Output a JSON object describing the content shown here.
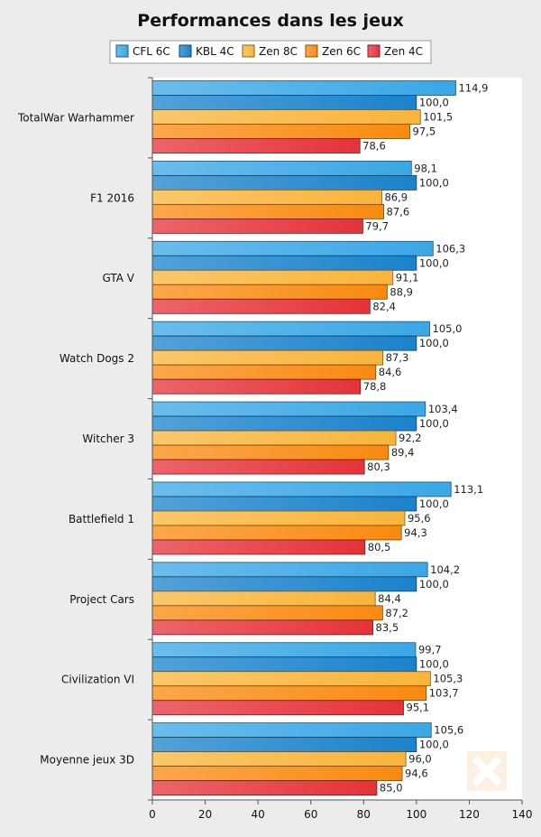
{
  "chart_data": {
    "type": "bar",
    "orientation": "horizontal",
    "title": "Performances dans les jeux",
    "categories": [
      "TotalWar Warhammer",
      "F1 2016",
      "GTA V",
      "Watch Dogs 2",
      "Witcher 3",
      "Battlefield 1",
      "Project Cars",
      "Civilization VI",
      "Moyenne jeux 3D"
    ],
    "series": [
      {
        "name": "CFL 6C",
        "color": "#3aa7e6",
        "values": [
          114.9,
          98.1,
          106.3,
          105.0,
          103.4,
          113.1,
          104.2,
          99.7,
          105.6
        ],
        "labels": [
          "114,9",
          "98,1",
          "106,3",
          "105,0",
          "103,4",
          "113,1",
          "104,2",
          "99,7",
          "105,6"
        ]
      },
      {
        "name": "KBL 4C",
        "color": "#1a82cc",
        "values": [
          100.0,
          100.0,
          100.0,
          100.0,
          100.0,
          100.0,
          100.0,
          100.0,
          100.0
        ],
        "labels": [
          "100,0",
          "100,0",
          "100,0",
          "100,0",
          "100,0",
          "100,0",
          "100,0",
          "100,0",
          "100,0"
        ]
      },
      {
        "name": "Zen 8C",
        "color": "#f9b43a",
        "values": [
          101.5,
          86.9,
          91.1,
          87.3,
          92.2,
          95.6,
          84.4,
          105.3,
          96.0
        ],
        "labels": [
          "101,5",
          "86,9",
          "91,1",
          "87,3",
          "92,2",
          "95,6",
          "84,4",
          "105,3",
          "96,0"
        ]
      },
      {
        "name": "Zen 6C",
        "color": "#f98a10",
        "values": [
          97.5,
          87.6,
          88.9,
          84.6,
          89.4,
          94.3,
          87.2,
          103.7,
          94.6
        ],
        "labels": [
          "97,5",
          "87,6",
          "88,9",
          "84,6",
          "89,4",
          "94,3",
          "87,2",
          "103,7",
          "94,6"
        ]
      },
      {
        "name": "Zen 4C",
        "color": "#e63239",
        "values": [
          78.6,
          79.7,
          82.4,
          78.8,
          80.3,
          80.5,
          83.5,
          95.1,
          85.0
        ],
        "labels": [
          "78,6",
          "79,7",
          "82,4",
          "78,8",
          "80,3",
          "80,5",
          "83,5",
          "95,1",
          "85,0"
        ]
      }
    ],
    "xlim": [
      0,
      140
    ],
    "xticks": [
      0,
      20,
      40,
      60,
      80,
      100,
      120,
      140
    ],
    "xlabel": "",
    "ylabel": "",
    "grid": false,
    "legend_position": "top"
  }
}
